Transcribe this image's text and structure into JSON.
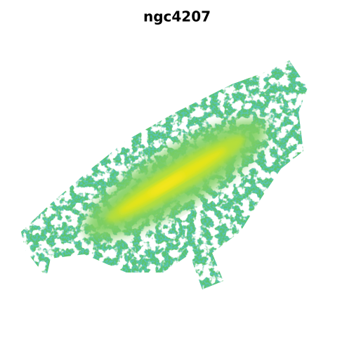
{
  "title": "ngc4207"
}
